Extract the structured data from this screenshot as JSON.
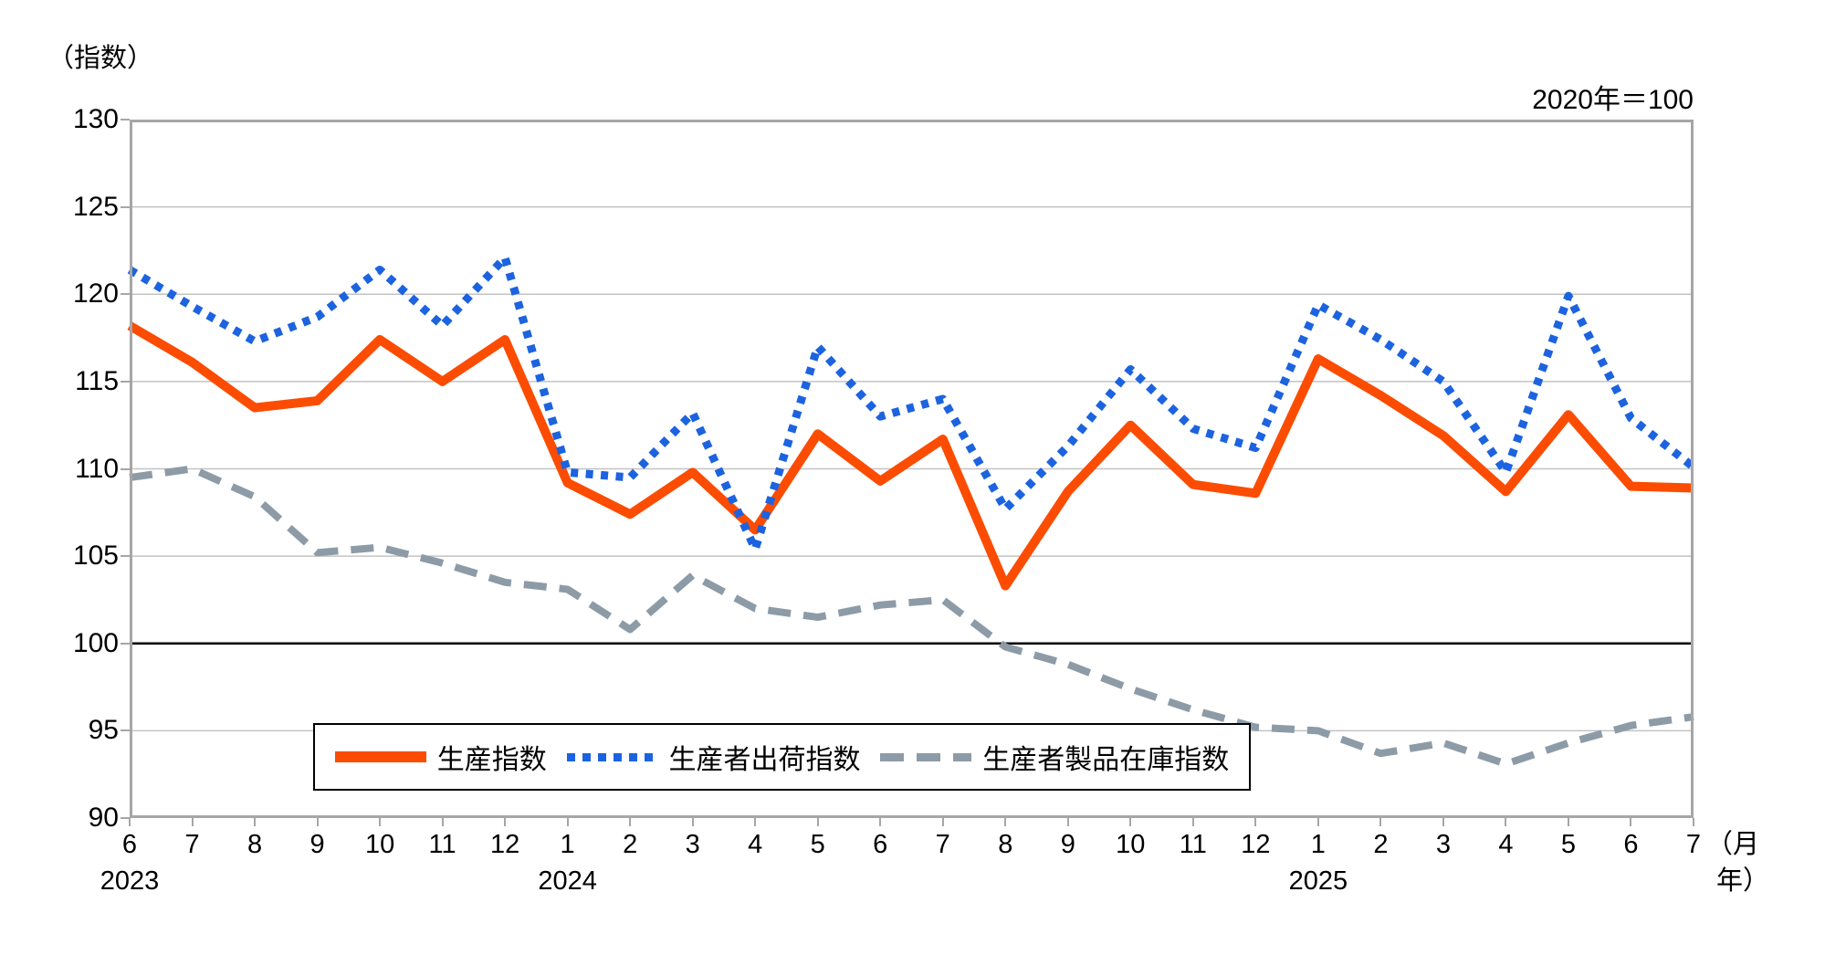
{
  "chart_data": {
    "type": "line",
    "unit_note": "（指数）",
    "base_note": "2020年＝100",
    "x_axis_note_line1": "（月",
    "x_axis_note_line2": "年）",
    "ylim": [
      90,
      130
    ],
    "ytick_step": 5,
    "emphasized_gridline": 100,
    "grid": true,
    "legend_position": "bottom-inside",
    "months": [
      "6",
      "7",
      "8",
      "9",
      "10",
      "11",
      "12",
      "1",
      "2",
      "3",
      "4",
      "5",
      "6",
      "7",
      "8",
      "9",
      "10",
      "11",
      "12",
      "1",
      "2",
      "3",
      "4",
      "5",
      "6",
      "7"
    ],
    "year_marks": [
      {
        "index": 0,
        "label": "2023"
      },
      {
        "index": 7,
        "label": "2024"
      },
      {
        "index": 19,
        "label": "2025"
      }
    ],
    "series": [
      {
        "id": "production",
        "name": "生産指数",
        "style": "solid",
        "color": "#fc4c02",
        "values": [
          118.2,
          116.1,
          113.5,
          113.9,
          117.4,
          115.0,
          117.4,
          109.2,
          107.4,
          109.8,
          106.5,
          112.0,
          109.3,
          111.7,
          103.3,
          108.7,
          112.5,
          109.1,
          108.6,
          116.3,
          114.2,
          111.9,
          108.7,
          113.1,
          109.0,
          108.9
        ]
      },
      {
        "id": "shipments",
        "name": "生産者出荷指数",
        "style": "dotted",
        "color": "#1c63e0",
        "values": [
          121.4,
          119.3,
          117.3,
          118.7,
          121.4,
          118.2,
          122.1,
          109.8,
          109.5,
          113.2,
          105.4,
          117.0,
          113.0,
          114.0,
          107.7,
          111.3,
          115.7,
          112.3,
          111.2,
          119.4,
          117.4,
          115.0,
          109.8,
          119.9,
          112.9,
          110.1
        ]
      },
      {
        "id": "inventory",
        "name": "生産者製品在庫指数",
        "style": "dashed",
        "color": "#8d9ba7",
        "values": [
          109.5,
          110.0,
          108.4,
          105.2,
          105.5,
          104.6,
          103.5,
          103.1,
          100.8,
          103.9,
          102.0,
          101.5,
          102.2,
          102.5,
          99.8,
          98.8,
          97.4,
          96.2,
          95.2,
          95.0,
          93.7,
          94.3,
          93.1,
          94.3,
          95.3,
          95.8
        ]
      }
    ],
    "colors": {
      "grid": "#c3c3c3",
      "frame": "#a6a6a6",
      "baseline": "#000000",
      "background": "#ffffff",
      "text": "#000000"
    }
  }
}
